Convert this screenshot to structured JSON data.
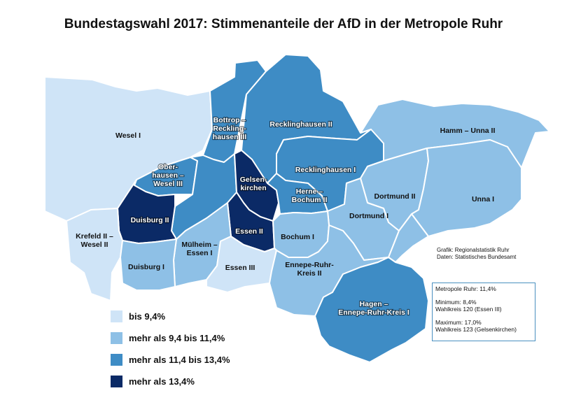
{
  "title": "Bundestagswahl 2017: Stimmenanteile der AfD in der Metropole Ruhr",
  "colors": {
    "class1": "#cfe4f7",
    "class2": "#8ec0e6",
    "class3": "#3e8cc5",
    "class4": "#0b2a66"
  },
  "districts": [
    {
      "id": "wesel",
      "label": "Wesel I",
      "class": "class1"
    },
    {
      "id": "bottrop",
      "label": "Bottrop –\nReckling-\nhausen III",
      "class": "class3"
    },
    {
      "id": "reck2",
      "label": "Recklinghausen II",
      "class": "class3"
    },
    {
      "id": "hamm",
      "label": "Hamm – Unna II",
      "class": "class2"
    },
    {
      "id": "reck1",
      "label": "Recklinghausen I",
      "class": "class3"
    },
    {
      "id": "oberhausen",
      "label": "Ober-\nhausen –\nWesel III",
      "class": "class3"
    },
    {
      "id": "gelsenkirchen",
      "label": "Gelsen-\nkirchen",
      "class": "class4"
    },
    {
      "id": "herne",
      "label": "Herne –\nBochum II",
      "class": "class3"
    },
    {
      "id": "dortmund2",
      "label": "Dortmund II",
      "class": "class2"
    },
    {
      "id": "unna1",
      "label": "Unna I",
      "class": "class2"
    },
    {
      "id": "duisburg2",
      "label": "Duisburg II",
      "class": "class4"
    },
    {
      "id": "dortmund1",
      "label": "Dortmund I",
      "class": "class2"
    },
    {
      "id": "essen2",
      "label": "Essen II",
      "class": "class4"
    },
    {
      "id": "krefeld",
      "label": "Krefeld II –\nWesel II",
      "class": "class1"
    },
    {
      "id": "muelheim",
      "label": "Mülheim –\nEssen I",
      "class": "class2"
    },
    {
      "id": "bochum1",
      "label": "Bochum I",
      "class": "class2"
    },
    {
      "id": "duisburg1",
      "label": "Duisburg I",
      "class": "class2"
    },
    {
      "id": "essen3",
      "label": "Essen III",
      "class": "class1"
    },
    {
      "id": "ennepe2",
      "label": "Ennepe-Ruhr-\nKreis II",
      "class": "class2"
    },
    {
      "id": "hagen",
      "label": "Hagen –\nEnnepe-Ruhr-Kreis I",
      "class": "class3"
    }
  ],
  "legend": [
    {
      "label": "bis 9,4%",
      "class": "class1"
    },
    {
      "label": "mehr als 9,4 bis 11,4%",
      "class": "class2"
    },
    {
      "label": "mehr als 11,4 bis 13,4%",
      "class": "class3"
    },
    {
      "label": "mehr als 13,4%",
      "class": "class4"
    }
  ],
  "source": {
    "line1": "Grafik: Regionalstatistik Ruhr",
    "line2": "Daten: Statistisches Bundesamt"
  },
  "info": {
    "line1": "Metropole Ruhr: 11,4%",
    "line2": "Minimum: 8,4%",
    "line3": "Wahlkreis 120 (Essen III)",
    "line4": "Maximum: 17,0%",
    "line5": "Wahlkreis 123 (Gelsenkirchen)"
  }
}
